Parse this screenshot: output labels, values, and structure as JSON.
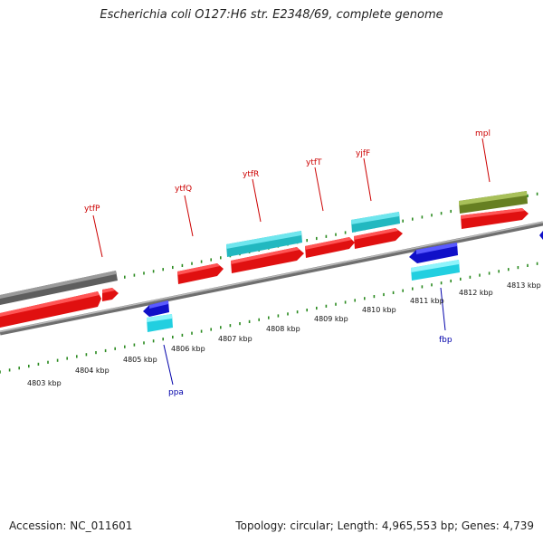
{
  "title": "Escherichia coli O127:H6 str. E2348/69, complete genome",
  "footer": {
    "accession": "Accession: NC_011601",
    "info": "Topology: circular; Length: 4,965,553 bp; Genes: 4,739"
  },
  "colors": {
    "backbone": "#8a8a8a",
    "tick_green": "#2a8a1f",
    "gene_red": "#ee1111",
    "gene_cyan": "#22c4cc",
    "gene_blue": "#1414d0",
    "gene_gray": "#6a6a6a",
    "gene_olive": "#6e8a26",
    "label_red": "#cc0000",
    "label_blue": "#0000aa"
  },
  "scale_labels": [
    "4803 kbp",
    "4804 kbp",
    "4805 kbp",
    "4806 kbp",
    "4807 kbp",
    "4808 kbp",
    "4809 kbp",
    "4810 kbp",
    "4811 kbp",
    "4812 kbp",
    "4813 kbp"
  ],
  "gene_labels": [
    {
      "name": "ytfP",
      "color": "red"
    },
    {
      "name": "ytfQ",
      "color": "red"
    },
    {
      "name": "ytfR",
      "color": "red"
    },
    {
      "name": "ytfT",
      "color": "red"
    },
    {
      "name": "yjfF",
      "color": "red"
    },
    {
      "name": "mpl",
      "color": "red"
    },
    {
      "name": "ppa",
      "color": "blue"
    },
    {
      "name": "fbp",
      "color": "blue"
    }
  ]
}
